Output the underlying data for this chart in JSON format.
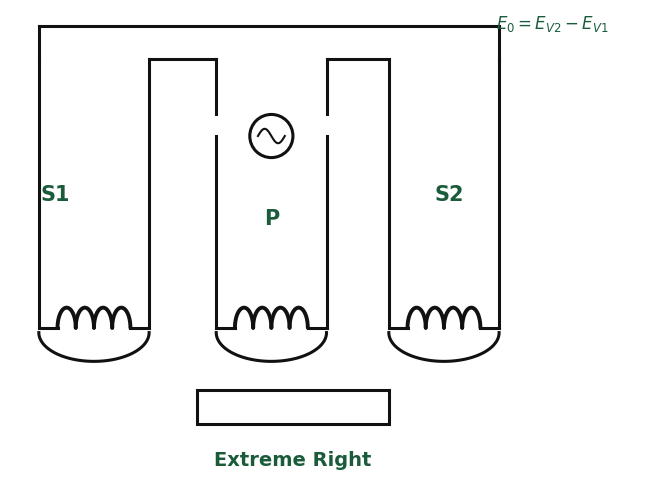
{
  "bg_color": "#ffffff",
  "line_color": "#111111",
  "label_color": "#1a5c3a",
  "lw": 2.2,
  "coil_lw": 2.8,
  "title": "Extreme Right",
  "formula": "$E_0 = E_{V2} - E_{V1}$",
  "s1_label": "S1",
  "p_label": "P",
  "s2_label": "S2",
  "figsize": [
    6.53,
    4.85
  ],
  "dpi": 100,
  "xlim": [
    0,
    13
  ],
  "ylim": [
    0,
    10
  ]
}
